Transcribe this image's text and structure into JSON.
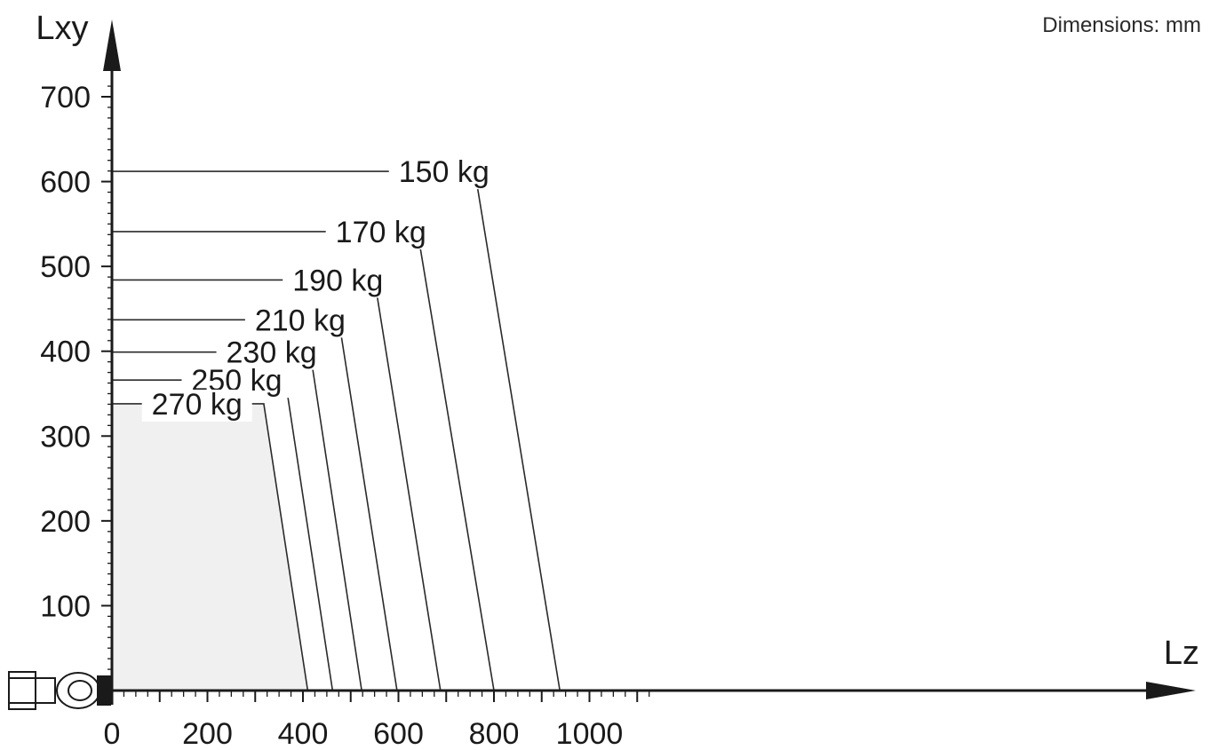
{
  "note": "Dimensions: mm",
  "chart_data": {
    "type": "line",
    "title": "",
    "xlabel": "Lz",
    "ylabel": "Lxy",
    "xlim": [
      0,
      1150
    ],
    "ylim": [
      0,
      750
    ],
    "x_ticks": [
      0,
      200,
      400,
      600,
      800,
      1000
    ],
    "x_tick_labels": [
      "0",
      "200",
      "400",
      "600",
      "800",
      "1000"
    ],
    "y_ticks": [
      100,
      200,
      300,
      400,
      500,
      600,
      700
    ],
    "y_tick_labels": [
      "100",
      "200",
      "300",
      "400",
      "500",
      "600",
      "700"
    ],
    "shaded_series": "270 kg",
    "series": [
      {
        "name": "150 kg",
        "label": "150 kg",
        "points": [
          [
            0,
            612
          ],
          [
            760,
            612
          ],
          [
            938,
            0
          ]
        ]
      },
      {
        "name": "170 kg",
        "label": "170 kg",
        "points": [
          [
            0,
            541
          ],
          [
            640,
            541
          ],
          [
            800,
            0
          ]
        ]
      },
      {
        "name": "190 kg",
        "label": "190 kg",
        "points": [
          [
            0,
            484
          ],
          [
            550,
            484
          ],
          [
            688,
            0
          ]
        ]
      },
      {
        "name": "210 kg",
        "label": "210 kg",
        "points": [
          [
            0,
            437
          ],
          [
            475,
            437
          ],
          [
            597,
            0
          ]
        ]
      },
      {
        "name": "230 kg",
        "label": "230 kg",
        "points": [
          [
            0,
            399
          ],
          [
            415,
            399
          ],
          [
            523,
            0
          ]
        ]
      },
      {
        "name": "250 kg",
        "label": "250 kg",
        "points": [
          [
            0,
            366
          ],
          [
            363,
            366
          ],
          [
            462,
            0
          ]
        ]
      },
      {
        "name": "270 kg",
        "label": "270 kg",
        "points": [
          [
            0,
            338
          ],
          [
            318,
            338
          ],
          [
            410,
            0
          ]
        ]
      }
    ]
  }
}
